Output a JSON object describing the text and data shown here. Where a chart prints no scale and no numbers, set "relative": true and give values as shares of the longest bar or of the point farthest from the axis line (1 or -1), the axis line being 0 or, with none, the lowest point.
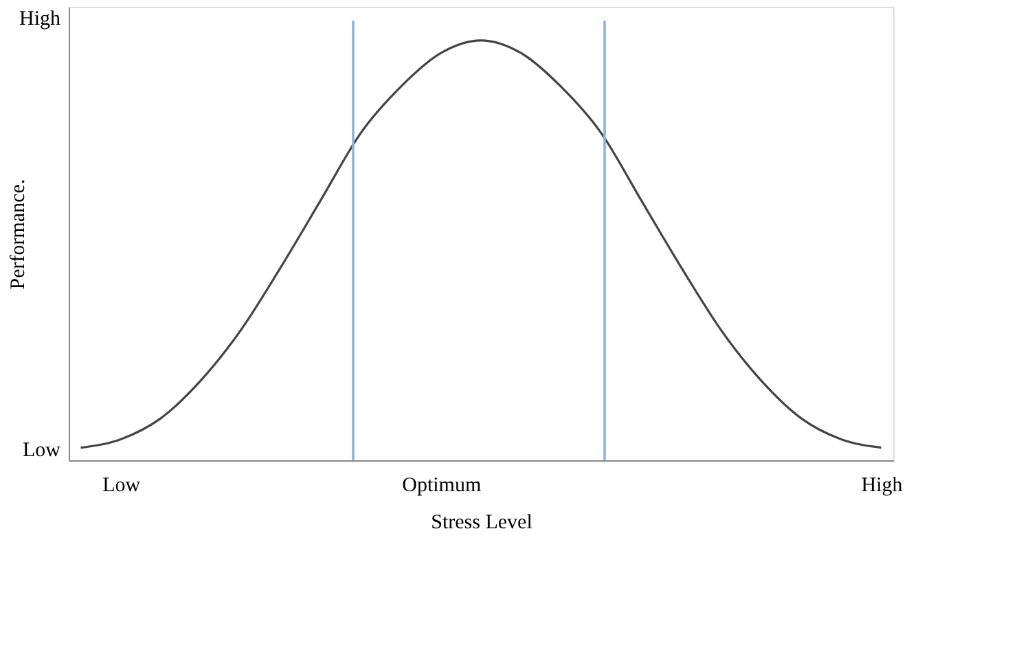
{
  "chart_data": {
    "type": "line",
    "relative": true,
    "xlabel": "Stress Level",
    "ylabel": "Performance.",
    "categories": [
      null,
      "Low",
      null,
      null,
      null,
      null,
      null,
      null,
      null,
      "Optimum",
      null,
      null,
      null,
      null,
      null,
      null,
      null,
      null,
      null,
      null,
      "High"
    ],
    "series": [
      {
        "color": "#444444",
        "values": [
          0.03,
          0.05,
          0.1,
          0.19,
          0.31,
          0.46,
          0.62,
          0.78,
          0.89,
          0.97,
          1,
          0.97,
          0.89,
          0.78,
          0.62,
          0.46,
          0.31,
          0.19,
          0.1,
          0.05,
          0.03
        ]
      }
    ],
    "annotations": [
      "High",
      "Low"
    ],
    "grid": false,
    "marker": "none",
    "line_style": "solid"
  }
}
